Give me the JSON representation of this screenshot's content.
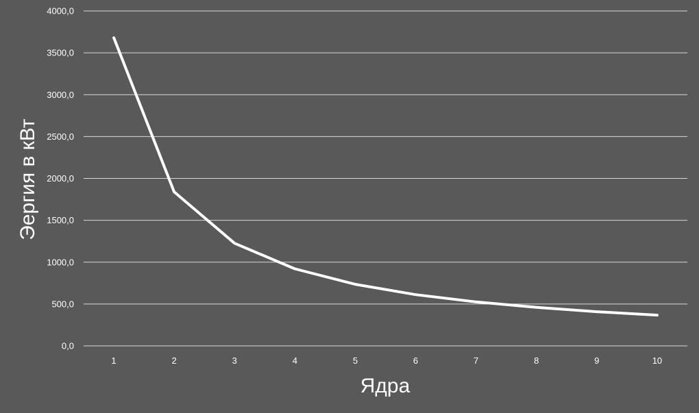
{
  "chart_data": {
    "type": "line",
    "title": "",
    "xlabel": "Ядра",
    "ylabel": "Эергия в кВт",
    "categories": [
      "1",
      "2",
      "3",
      "4",
      "5",
      "6",
      "7",
      "8",
      "9",
      "10"
    ],
    "series": [
      {
        "values": [
          3680,
          1840,
          1225,
          920,
          735,
          612,
          525,
          460,
          408,
          367
        ]
      }
    ],
    "ylim": [
      0,
      4000
    ],
    "yticks": [
      "0,0",
      "500,0",
      "1000,0",
      "1500,0",
      "2000,0",
      "2500,0",
      "3000,0",
      "3500,0",
      "4000,0"
    ],
    "grid": true,
    "legend": "none",
    "colors": {
      "background": "#595959",
      "line": "#ffffff",
      "grid": "#d9d9d9",
      "text": "#ffffff"
    }
  }
}
